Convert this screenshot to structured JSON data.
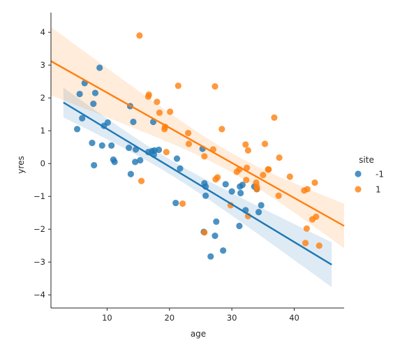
{
  "chart_data": {
    "type": "scatter",
    "title": "",
    "xlabel": "age",
    "ylabel": "yres",
    "xlim": [
      1,
      48
    ],
    "ylim": [
      -4.4,
      4.6
    ],
    "xticks": [
      10,
      20,
      30,
      40
    ],
    "yticks": [
      -4,
      -3,
      -2,
      -1,
      0,
      1,
      2,
      3,
      4
    ],
    "grid": false,
    "legend": {
      "title": "site",
      "placement": "right"
    },
    "series": [
      {
        "name": "-1",
        "color": "#1f77b4",
        "points": [
          [
            5.2,
            1.05
          ],
          [
            5.6,
            2.12
          ],
          [
            6.0,
            1.38
          ],
          [
            6.4,
            2.45
          ],
          [
            7.6,
            0.63
          ],
          [
            7.8,
            1.82
          ],
          [
            7.9,
            -0.05
          ],
          [
            8.1,
            2.15
          ],
          [
            8.8,
            2.92
          ],
          [
            9.2,
            0.55
          ],
          [
            9.5,
            1.15
          ],
          [
            10.1,
            1.25
          ],
          [
            10.7,
            0.55
          ],
          [
            11.0,
            0.12
          ],
          [
            11.2,
            0.05
          ],
          [
            13.5,
            0.48
          ],
          [
            13.7,
            1.75
          ],
          [
            13.8,
            -0.32
          ],
          [
            14.2,
            1.27
          ],
          [
            14.5,
            0.05
          ],
          [
            14.6,
            0.43
          ],
          [
            15.3,
            0.1
          ],
          [
            16.6,
            0.35
          ],
          [
            17.2,
            0.38
          ],
          [
            17.4,
            1.27
          ],
          [
            17.5,
            0.27
          ],
          [
            17.6,
            0.4
          ],
          [
            18.3,
            0.42
          ],
          [
            21.0,
            -1.2
          ],
          [
            21.2,
            0.15
          ],
          [
            21.7,
            -0.15
          ],
          [
            25.3,
            0.45
          ],
          [
            25.5,
            -2.08
          ],
          [
            25.6,
            -0.6
          ],
          [
            25.8,
            -0.7
          ],
          [
            25.8,
            -0.98
          ],
          [
            26.6,
            -2.83
          ],
          [
            27.3,
            -2.2
          ],
          [
            27.5,
            -1.77
          ],
          [
            28.6,
            -2.65
          ],
          [
            29.0,
            -0.63
          ],
          [
            30.0,
            -0.85
          ],
          [
            31.2,
            -1.9
          ],
          [
            31.3,
            -0.7
          ],
          [
            31.4,
            -0.9
          ],
          [
            31.7,
            -0.65
          ],
          [
            32.2,
            -1.42
          ],
          [
            33.6,
            -0.7
          ],
          [
            34.0,
            -0.78
          ],
          [
            34.3,
            -1.48
          ],
          [
            34.7,
            -1.27
          ]
        ],
        "fit_line": {
          "x": [
            3,
            46
          ],
          "y": [
            1.86,
            -3.08
          ]
        }
      },
      {
        "name": "1",
        "color": "#ff7f0e",
        "points": [
          [
            15.2,
            3.9
          ],
          [
            15.5,
            -0.53
          ],
          [
            16.6,
            2.04
          ],
          [
            16.7,
            2.1
          ],
          [
            18.0,
            1.88
          ],
          [
            18.4,
            1.55
          ],
          [
            19.2,
            1.05
          ],
          [
            19.3,
            1.12
          ],
          [
            19.5,
            0.35
          ],
          [
            20.1,
            1.58
          ],
          [
            21.4,
            2.37
          ],
          [
            22.1,
            -1.22
          ],
          [
            23.0,
            0.93
          ],
          [
            23.1,
            0.6
          ],
          [
            25.6,
            -2.1
          ],
          [
            25.6,
            0.22
          ],
          [
            27.0,
            0.43
          ],
          [
            27.3,
            2.35
          ],
          [
            27.4,
            -0.48
          ],
          [
            27.7,
            -0.42
          ],
          [
            28.4,
            1.05
          ],
          [
            29.8,
            -1.27
          ],
          [
            30.8,
            -0.25
          ],
          [
            31.2,
            -0.18
          ],
          [
            32.2,
            0.58
          ],
          [
            32.3,
            -0.5
          ],
          [
            32.4,
            -0.13
          ],
          [
            32.6,
            -1.6
          ],
          [
            32.6,
            0.4
          ],
          [
            33.9,
            -0.58
          ],
          [
            34.0,
            -0.7
          ],
          [
            34.0,
            -0.78
          ],
          [
            35.0,
            -0.35
          ],
          [
            35.3,
            0.6
          ],
          [
            35.8,
            -0.18
          ],
          [
            35.9,
            -0.18
          ],
          [
            36.8,
            1.4
          ],
          [
            37.5,
            -0.98
          ],
          [
            37.6,
            0.18
          ],
          [
            39.3,
            -0.4
          ],
          [
            41.6,
            -0.82
          ],
          [
            41.8,
            -2.42
          ],
          [
            42.0,
            -1.98
          ],
          [
            42.1,
            -0.78
          ],
          [
            42.9,
            -1.7
          ],
          [
            43.3,
            -0.58
          ],
          [
            43.5,
            -1.62
          ],
          [
            44.0,
            -2.5
          ]
        ],
        "fit_line": {
          "x": [
            1,
            48
          ],
          "y": [
            3.12,
            -1.9
          ]
        }
      }
    ]
  }
}
